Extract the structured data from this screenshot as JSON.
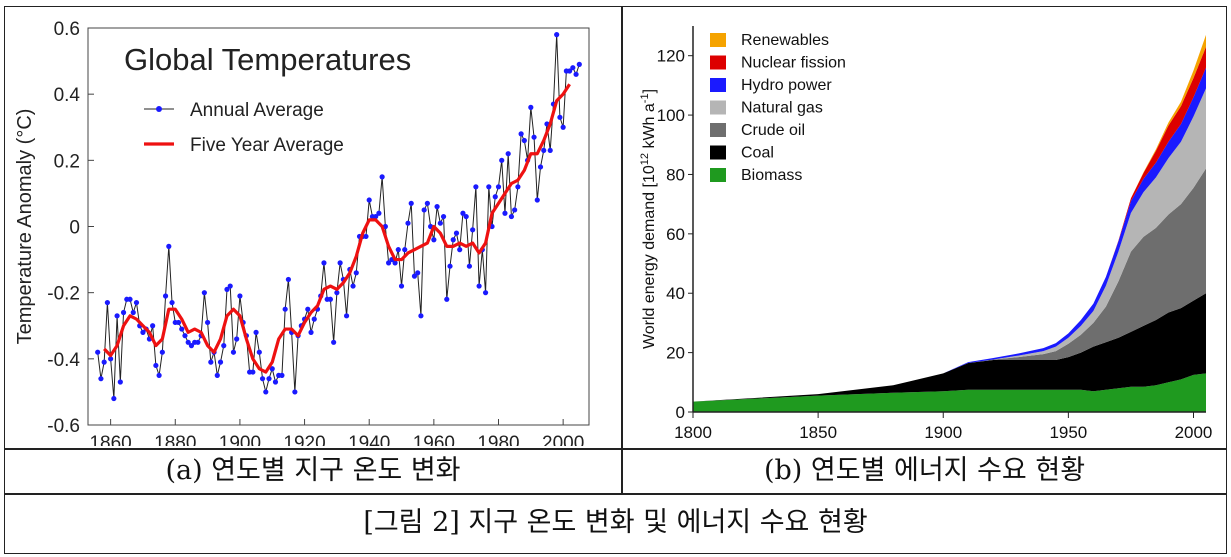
{
  "captions": {
    "left": "(a) 연도별 지구 온도 변화",
    "right": "(b) 연도별 에너지 수요 현황",
    "figure": "[그림 2] 지구 온도 변화 및 에너지 수요 현황"
  },
  "chart_data": [
    {
      "type": "line",
      "title": "Global Temperatures",
      "ylabel": "Temperature Anomaly (°C)",
      "xlabel": "",
      "xlim": [
        1853,
        2008
      ],
      "ylim": [
        -0.6,
        0.6
      ],
      "xticks": [
        1860,
        1880,
        1900,
        1920,
        1940,
        1960,
        1980,
        2000
      ],
      "yticks": [
        -0.6,
        -0.4,
        -0.2,
        0,
        0.2,
        0.4,
        0.6
      ],
      "ytick_labels": [
        "-0.6",
        "-0.4",
        "-0.2",
        "0",
        "0.2",
        "0.4",
        "0.6"
      ],
      "legend": "top-left",
      "series": [
        {
          "name": "Annual Average",
          "color": "#1a1aff",
          "x": [
            1856,
            1857,
            1858,
            1859,
            1860,
            1861,
            1862,
            1863,
            1864,
            1865,
            1866,
            1867,
            1868,
            1869,
            1870,
            1871,
            1872,
            1873,
            1874,
            1875,
            1876,
            1877,
            1878,
            1879,
            1880,
            1881,
            1882,
            1883,
            1884,
            1885,
            1886,
            1887,
            1888,
            1889,
            1890,
            1891,
            1892,
            1893,
            1894,
            1895,
            1896,
            1897,
            1898,
            1899,
            1900,
            1901,
            1902,
            1903,
            1904,
            1905,
            1906,
            1907,
            1908,
            1909,
            1910,
            1911,
            1912,
            1913,
            1914,
            1915,
            1916,
            1917,
            1918,
            1919,
            1920,
            1921,
            1922,
            1923,
            1924,
            1925,
            1926,
            1927,
            1928,
            1929,
            1930,
            1931,
            1932,
            1933,
            1934,
            1935,
            1936,
            1937,
            1938,
            1939,
            1940,
            1941,
            1942,
            1943,
            1944,
            1945,
            1946,
            1947,
            1948,
            1949,
            1950,
            1951,
            1952,
            1953,
            1954,
            1955,
            1956,
            1957,
            1958,
            1959,
            1960,
            1961,
            1962,
            1963,
            1964,
            1965,
            1966,
            1967,
            1968,
            1969,
            1970,
            1971,
            1972,
            1973,
            1974,
            1975,
            1976,
            1977,
            1978,
            1979,
            1980,
            1981,
            1982,
            1983,
            1984,
            1985,
            1986,
            1987,
            1988,
            1989,
            1990,
            1991,
            1992,
            1993,
            1994,
            1995,
            1996,
            1997,
            1998,
            1999,
            2000,
            2001,
            2002,
            2003,
            2004,
            2005
          ],
          "values": [
            -0.38,
            -0.46,
            -0.41,
            -0.23,
            -0.4,
            -0.52,
            -0.27,
            -0.47,
            -0.26,
            -0.22,
            -0.22,
            -0.26,
            -0.23,
            -0.3,
            -0.32,
            -0.31,
            -0.34,
            -0.3,
            -0.42,
            -0.45,
            -0.38,
            -0.21,
            -0.06,
            -0.23,
            -0.29,
            -0.29,
            -0.31,
            -0.33,
            -0.35,
            -0.36,
            -0.35,
            -0.35,
            -0.33,
            -0.2,
            -0.29,
            -0.41,
            -0.38,
            -0.45,
            -0.41,
            -0.36,
            -0.19,
            -0.18,
            -0.38,
            -0.34,
            -0.21,
            -0.29,
            -0.33,
            -0.44,
            -0.44,
            -0.32,
            -0.38,
            -0.46,
            -0.5,
            -0.46,
            -0.43,
            -0.47,
            -0.45,
            -0.45,
            -0.25,
            -0.16,
            -0.32,
            -0.5,
            -0.33,
            -0.3,
            -0.28,
            -0.25,
            -0.32,
            -0.28,
            -0.25,
            -0.21,
            -0.11,
            -0.22,
            -0.22,
            -0.35,
            -0.2,
            -0.11,
            -0.16,
            -0.27,
            -0.13,
            -0.18,
            -0.14,
            -0.03,
            -0.03,
            -0.03,
            0.08,
            0.03,
            0.03,
            0.04,
            0.15,
            0.0,
            -0.11,
            -0.1,
            -0.11,
            -0.07,
            -0.18,
            -0.07,
            0.01,
            0.07,
            -0.15,
            -0.14,
            -0.27,
            0.05,
            0.07,
            0.0,
            -0.04,
            0.06,
            0.01,
            0.03,
            -0.22,
            -0.12,
            -0.04,
            -0.02,
            -0.07,
            0.04,
            0.03,
            -0.12,
            -0.01,
            0.12,
            -0.18,
            -0.07,
            -0.2,
            0.12,
            0.0,
            0.09,
            0.12,
            0.2,
            0.04,
            0.22,
            0.03,
            0.05,
            0.12,
            0.28,
            0.26,
            0.2,
            0.36,
            0.27,
            0.08,
            0.18,
            0.23,
            0.31,
            0.23,
            0.37,
            0.58,
            0.33,
            0.3,
            0.47,
            0.47,
            0.48,
            0.46,
            0.49
          ]
        },
        {
          "name": "Five Year Average",
          "color": "#ee1111",
          "x": [
            1858,
            1860,
            1862,
            1864,
            1866,
            1868,
            1870,
            1872,
            1874,
            1876,
            1878,
            1880,
            1882,
            1884,
            1886,
            1888,
            1890,
            1892,
            1894,
            1896,
            1898,
            1900,
            1902,
            1904,
            1906,
            1908,
            1910,
            1912,
            1914,
            1916,
            1918,
            1920,
            1922,
            1924,
            1926,
            1928,
            1930,
            1932,
            1934,
            1936,
            1938,
            1940,
            1942,
            1944,
            1946,
            1948,
            1950,
            1952,
            1954,
            1956,
            1958,
            1960,
            1962,
            1964,
            1966,
            1968,
            1970,
            1972,
            1974,
            1976,
            1978,
            1980,
            1982,
            1984,
            1986,
            1988,
            1990,
            1992,
            1994,
            1996,
            1998,
            2000,
            2002
          ],
          "values": [
            -0.37,
            -0.39,
            -0.36,
            -0.3,
            -0.27,
            -0.28,
            -0.3,
            -0.32,
            -0.36,
            -0.34,
            -0.25,
            -0.25,
            -0.28,
            -0.32,
            -0.31,
            -0.32,
            -0.36,
            -0.38,
            -0.34,
            -0.27,
            -0.25,
            -0.27,
            -0.34,
            -0.4,
            -0.43,
            -0.44,
            -0.41,
            -0.34,
            -0.31,
            -0.31,
            -0.33,
            -0.29,
            -0.26,
            -0.24,
            -0.19,
            -0.18,
            -0.19,
            -0.17,
            -0.14,
            -0.09,
            -0.02,
            0.02,
            0.02,
            0.0,
            -0.06,
            -0.1,
            -0.1,
            -0.08,
            -0.07,
            -0.06,
            -0.05,
            0.0,
            -0.02,
            -0.06,
            -0.06,
            -0.05,
            -0.06,
            -0.05,
            -0.08,
            -0.05,
            0.04,
            0.07,
            0.1,
            0.13,
            0.14,
            0.17,
            0.22,
            0.22,
            0.26,
            0.31,
            0.38,
            0.4,
            0.43
          ]
        }
      ]
    },
    {
      "type": "area",
      "title": "",
      "xlabel": "",
      "ylabel": "World energy demand [10^12 kWh a^-1]",
      "xlim": [
        1800,
        2005
      ],
      "ylim": [
        0,
        130
      ],
      "xticks": [
        1800,
        1850,
        1900,
        1950,
        2000
      ],
      "yticks": [
        0,
        20,
        40,
        60,
        80,
        100,
        120
      ],
      "legend": "top-left",
      "x": [
        1800,
        1850,
        1880,
        1900,
        1910,
        1920,
        1930,
        1940,
        1945,
        1950,
        1955,
        1960,
        1965,
        1970,
        1975,
        1980,
        1985,
        1990,
        1995,
        2000,
        2005
      ],
      "series": [
        {
          "name": "Biomass",
          "color": "#1f9a1f",
          "values": [
            3.5,
            5.5,
            6.5,
            7.0,
            7.5,
            7.5,
            7.5,
            7.5,
            7.5,
            7.5,
            7.5,
            7.0,
            7.5,
            8.0,
            8.5,
            8.5,
            9.0,
            10.0,
            11.0,
            12.5,
            13.0
          ]
        },
        {
          "name": "Coal",
          "color": "#000000",
          "values": [
            0.0,
            0.5,
            2.5,
            6.0,
            9.0,
            10.0,
            10.0,
            10.0,
            10.0,
            11.0,
            12.5,
            15.0,
            16.0,
            17.0,
            18.5,
            20.5,
            22.0,
            23.5,
            24.0,
            25.0,
            27.0
          ]
        },
        {
          "name": "Crude oil",
          "color": "#6e6e6e",
          "values": [
            0.0,
            0.0,
            0.0,
            0.0,
            0.0,
            0.2,
            1.0,
            2.0,
            3.0,
            4.5,
            6.0,
            8.0,
            12.0,
            19.0,
            27.0,
            30.0,
            31.0,
            33.0,
            35.0,
            38.0,
            42.0
          ]
        },
        {
          "name": "Natural gas",
          "color": "#b5b5b5",
          "values": [
            0.0,
            0.0,
            0.0,
            0.0,
            0.0,
            0.0,
            0.5,
            1.0,
            1.5,
            2.0,
            3.0,
            4.0,
            7.0,
            10.0,
            13.0,
            15.0,
            17.0,
            19.0,
            21.0,
            24.0,
            27.0
          ]
        },
        {
          "name": "Hydro power",
          "color": "#1a1aff",
          "values": [
            0.0,
            0.0,
            0.0,
            0.0,
            0.3,
            0.5,
            0.7,
            1.0,
            1.2,
            1.5,
            2.0,
            2.5,
            3.0,
            3.5,
            4.0,
            4.5,
            5.0,
            5.5,
            6.0,
            6.5,
            7.0
          ]
        },
        {
          "name": "Nuclear fission",
          "color": "#dd0000",
          "values": [
            0.0,
            0.0,
            0.0,
            0.0,
            0.0,
            0.0,
            0.0,
            0.0,
            0.0,
            0.0,
            0.0,
            0.0,
            0.0,
            0.2,
            1.0,
            2.0,
            4.0,
            5.5,
            6.0,
            6.5,
            7.0
          ]
        },
        {
          "name": "Renewables",
          "color": "#f5a300",
          "values": [
            0.0,
            0.0,
            0.0,
            0.0,
            0.0,
            0.0,
            0.0,
            0.0,
            0.0,
            0.0,
            0.0,
            0.0,
            0.0,
            0.0,
            0.0,
            0.2,
            0.5,
            1.0,
            1.5,
            2.5,
            4.0
          ]
        }
      ]
    }
  ]
}
